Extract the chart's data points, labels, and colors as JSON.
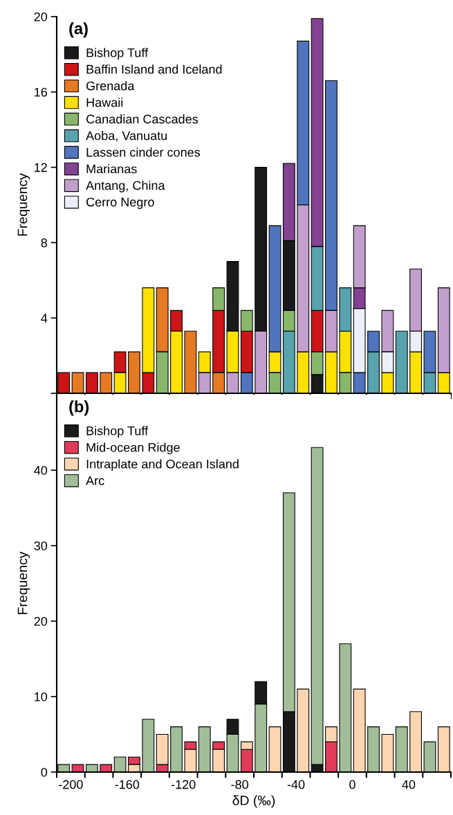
{
  "chart_data": [
    {
      "type": "bar",
      "annotations": [
        "(a)"
      ],
      "ylabel": "Frequency",
      "x": [
        -205,
        -195,
        -185,
        -175,
        -165,
        -155,
        -145,
        -135,
        -125,
        -115,
        -105,
        -95,
        -85,
        -75,
        -65,
        -55,
        -45,
        -35,
        -25,
        -15,
        -5,
        5,
        15,
        25,
        35,
        45,
        55,
        65
      ],
      "xlim": [
        -210,
        70
      ],
      "ylim": [
        0,
        20
      ],
      "xticks": [
        {
          "value": -210,
          "label": null
        },
        {
          "value": -190,
          "label": null
        },
        {
          "value": -170,
          "label": null
        },
        {
          "value": -150,
          "label": null
        },
        {
          "value": -130,
          "label": null
        },
        {
          "value": -110,
          "label": null
        },
        {
          "value": -90,
          "label": null
        },
        {
          "value": -70,
          "label": null
        },
        {
          "value": -50,
          "label": null
        },
        {
          "value": -30,
          "label": null
        },
        {
          "value": -10,
          "label": null
        },
        {
          "value": 10,
          "label": null
        },
        {
          "value": 30,
          "label": null
        },
        {
          "value": 50,
          "label": null
        },
        {
          "value": 70,
          "label": null
        }
      ],
      "yticks": [
        {
          "value": 0,
          "label": null
        },
        4,
        8,
        12,
        16,
        20
      ],
      "tick_labels": "y",
      "legend": "top left",
      "series": [
        {
          "name": "Bishop Tuff",
          "color": "#1a1a1a",
          "values": [
            null,
            null,
            null,
            null,
            null,
            null,
            null,
            null,
            null,
            null,
            null,
            null,
            3.7,
            null,
            8.7,
            null,
            3.7,
            null,
            1.0,
            null,
            null,
            null,
            null,
            null,
            null,
            null,
            null,
            null
          ],
          "base": [
            null,
            null,
            null,
            null,
            null,
            null,
            null,
            null,
            null,
            null,
            null,
            null,
            3.3,
            null,
            3.3,
            null,
            4.4,
            null,
            0,
            null,
            null,
            null,
            null,
            null,
            null,
            null,
            null,
            null
          ]
        },
        {
          "name": "Baffin Island and Iceland",
          "color": "#cc1517",
          "values": [
            1.1,
            null,
            1.1,
            null,
            1.1,
            null,
            1.1,
            null,
            1.1,
            null,
            null,
            3.3,
            null,
            2.2,
            null,
            null,
            null,
            null,
            2.2,
            null,
            null,
            null,
            null,
            null,
            null,
            null,
            null,
            null
          ],
          "base": [
            0,
            null,
            0,
            null,
            1.1,
            null,
            0,
            null,
            3.3,
            null,
            null,
            1.1,
            null,
            1.1,
            null,
            null,
            null,
            null,
            2.2,
            null,
            null,
            null,
            null,
            null,
            null,
            null,
            null,
            null
          ]
        },
        {
          "name": "Grenada",
          "color": "#e57a24",
          "values": [
            null,
            1.1,
            null,
            1.1,
            null,
            2.2,
            null,
            3.4,
            null,
            3.3,
            null,
            1.1,
            null,
            null,
            null,
            null,
            null,
            null,
            null,
            null,
            null,
            null,
            null,
            null,
            null,
            null,
            null,
            null
          ],
          "base": [
            null,
            0,
            null,
            0,
            null,
            0,
            null,
            2.2,
            null,
            0,
            null,
            0,
            null,
            null,
            null,
            null,
            null,
            null,
            null,
            null,
            null,
            null,
            null,
            null,
            null,
            null,
            null,
            null
          ]
        },
        {
          "name": "Hawaii",
          "color": "#ffe100",
          "values": [
            null,
            null,
            null,
            null,
            1.1,
            null,
            4.5,
            null,
            3.3,
            null,
            1.1,
            null,
            2.2,
            null,
            null,
            1.1,
            null,
            2.2,
            null,
            2.2,
            2.2,
            null,
            null,
            1.1,
            null,
            2.2,
            null,
            1.1
          ],
          "base": [
            null,
            null,
            null,
            null,
            0,
            null,
            1.1,
            null,
            0,
            null,
            1.1,
            null,
            1.1,
            null,
            null,
            1.1,
            null,
            0,
            null,
            0,
            1.1,
            null,
            null,
            0,
            null,
            0,
            null,
            0
          ]
        },
        {
          "name": "Canadian Cascades",
          "color": "#88b76b",
          "values": [
            null,
            null,
            null,
            null,
            null,
            null,
            null,
            2.2,
            null,
            null,
            null,
            1.2,
            null,
            1.1,
            null,
            1.1,
            1.1,
            null,
            1.2,
            null,
            1.1,
            null,
            null,
            null,
            null,
            null,
            null,
            null
          ],
          "base": [
            null,
            null,
            null,
            null,
            null,
            null,
            null,
            0,
            null,
            null,
            null,
            4.4,
            null,
            3.3,
            null,
            0,
            3.3,
            null,
            1.0,
            null,
            0,
            null,
            null,
            null,
            null,
            null,
            null,
            null
          ]
        },
        {
          "name": "Aoba, Vanuatu",
          "color": "#57a3ae",
          "values": [
            null,
            null,
            null,
            null,
            null,
            null,
            null,
            null,
            null,
            null,
            null,
            null,
            null,
            null,
            null,
            null,
            3.3,
            null,
            3.4,
            null,
            2.3,
            null,
            2.2,
            null,
            3.3,
            null,
            1.1,
            null
          ],
          "base": [
            null,
            null,
            null,
            null,
            null,
            null,
            null,
            null,
            null,
            null,
            null,
            null,
            null,
            null,
            null,
            null,
            0,
            null,
            4.4,
            null,
            3.3,
            null,
            0,
            null,
            0,
            null,
            0,
            null
          ]
        },
        {
          "name": "Lassen cinder cones",
          "color": "#5074bd",
          "values": [
            null,
            null,
            null,
            null,
            null,
            null,
            null,
            null,
            null,
            null,
            null,
            null,
            null,
            1.1,
            null,
            6.7,
            null,
            8.7,
            null,
            12.2,
            null,
            1.1,
            1.1,
            null,
            null,
            null,
            2.2,
            null
          ],
          "base": [
            null,
            null,
            null,
            null,
            null,
            null,
            null,
            null,
            null,
            null,
            null,
            null,
            null,
            0,
            null,
            2.2,
            null,
            10.0,
            null,
            4.4,
            null,
            0,
            2.2,
            null,
            null,
            null,
            1.1,
            null
          ]
        },
        {
          "name": "Marianas",
          "color": "#844292",
          "values": [
            null,
            null,
            null,
            null,
            null,
            null,
            null,
            null,
            null,
            null,
            null,
            null,
            null,
            null,
            null,
            null,
            4.1,
            null,
            12.1,
            null,
            null,
            1.1,
            null,
            null,
            null,
            null,
            null,
            null
          ],
          "base": [
            null,
            null,
            null,
            null,
            null,
            null,
            null,
            null,
            null,
            null,
            null,
            null,
            null,
            null,
            null,
            null,
            8.1,
            null,
            7.8,
            null,
            null,
            4.5,
            null,
            null,
            null,
            null,
            null,
            null
          ]
        },
        {
          "name": "Antang, China",
          "color": "#c39fcd",
          "values": [
            null,
            null,
            null,
            null,
            null,
            null,
            null,
            null,
            null,
            null,
            1.1,
            null,
            1.1,
            null,
            3.3,
            null,
            null,
            7.8,
            null,
            2.2,
            null,
            3.3,
            null,
            2.2,
            null,
            3.3,
            null,
            4.5
          ],
          "base": [
            null,
            null,
            null,
            null,
            null,
            null,
            null,
            null,
            null,
            null,
            0,
            null,
            0,
            null,
            0,
            null,
            null,
            2.2,
            null,
            2.2,
            null,
            5.6,
            null,
            2.2,
            null,
            3.3,
            null,
            1.1
          ]
        },
        {
          "name": "Cerro Negro",
          "color": "#eceef8",
          "values": [
            null,
            null,
            null,
            null,
            null,
            null,
            null,
            null,
            null,
            null,
            null,
            null,
            null,
            null,
            null,
            null,
            null,
            null,
            null,
            null,
            null,
            3.4,
            null,
            1.1,
            null,
            1.1,
            null,
            null
          ],
          "base": [
            null,
            null,
            null,
            null,
            null,
            null,
            null,
            null,
            null,
            null,
            null,
            null,
            null,
            null,
            null,
            null,
            null,
            null,
            null,
            null,
            null,
            1.1,
            null,
            1.1,
            null,
            2.2,
            null,
            null
          ]
        }
      ]
    },
    {
      "type": "bar",
      "annotations": [
        "(b)"
      ],
      "ylabel": "Frequency",
      "xlabel": "δD (‰)",
      "x": [
        -205,
        -195,
        -185,
        -175,
        -165,
        -155,
        -145,
        -135,
        -125,
        -115,
        -105,
        -95,
        -85,
        -75,
        -65,
        -55,
        -45,
        -35,
        -25,
        -15,
        -5,
        5,
        15,
        25,
        35,
        45,
        55,
        65
      ],
      "xlim": [
        -210,
        70
      ],
      "ylim": [
        0,
        50
      ],
      "xticks": [
        {
          "value": -210,
          "label": null
        },
        {
          "value": -200,
          "label": "-200"
        },
        {
          "value": -190,
          "label": null
        },
        {
          "value": -170,
          "label": null
        },
        {
          "value": -160,
          "label": "-160"
        },
        {
          "value": -150,
          "label": null
        },
        {
          "value": -130,
          "label": null
        },
        {
          "value": -120,
          "label": "-120"
        },
        {
          "value": -110,
          "label": null
        },
        {
          "value": -90,
          "label": null
        },
        {
          "value": -80,
          "label": "-80"
        },
        {
          "value": -70,
          "label": null
        },
        {
          "value": -50,
          "label": null
        },
        {
          "value": -40,
          "label": "-40"
        },
        {
          "value": -30,
          "label": null
        },
        {
          "value": -10,
          "label": null
        },
        {
          "value": 0,
          "label": "0"
        },
        {
          "value": 10,
          "label": null
        },
        {
          "value": 30,
          "label": null
        },
        {
          "value": 40,
          "label": "40"
        },
        {
          "value": 50,
          "label": null
        },
        {
          "value": 70,
          "label": null
        }
      ],
      "yticks": [
        0,
        10,
        20,
        30,
        40
      ],
      "legend": "top left",
      "series": [
        {
          "name": "Bishop Tuff",
          "color": "#1a1a1a",
          "values": [
            null,
            null,
            null,
            null,
            null,
            null,
            null,
            null,
            null,
            null,
            null,
            null,
            2,
            null,
            3,
            null,
            8,
            null,
            1,
            null,
            null,
            null,
            null,
            null,
            null,
            null,
            null,
            null
          ],
          "base": [
            null,
            null,
            null,
            null,
            null,
            null,
            null,
            null,
            null,
            null,
            null,
            null,
            5,
            null,
            9,
            null,
            0,
            null,
            0,
            null,
            null,
            null,
            null,
            null,
            null,
            null,
            null,
            null
          ]
        },
        {
          "name": "Mid-ocean Ridge",
          "color": "#e03c59",
          "values": [
            null,
            1,
            null,
            1,
            null,
            1,
            null,
            1,
            null,
            1,
            null,
            1,
            null,
            3,
            null,
            null,
            null,
            null,
            null,
            4,
            null,
            null,
            null,
            null,
            null,
            null,
            null,
            null
          ],
          "base": [
            null,
            0,
            null,
            0,
            null,
            1,
            null,
            0,
            null,
            3,
            null,
            3,
            null,
            0,
            null,
            null,
            null,
            null,
            null,
            0,
            null,
            null,
            null,
            null,
            null,
            null,
            null,
            null
          ]
        },
        {
          "name": "Intraplate and Ocean Island",
          "color": "#fdd5b1",
          "values": [
            null,
            null,
            null,
            null,
            null,
            1,
            null,
            4,
            null,
            3,
            null,
            3,
            null,
            1,
            null,
            6,
            null,
            11,
            null,
            2,
            null,
            11,
            null,
            5,
            null,
            8,
            null,
            6
          ],
          "base": [
            null,
            null,
            null,
            null,
            null,
            0,
            null,
            1,
            null,
            0,
            null,
            0,
            null,
            3,
            null,
            0,
            null,
            0,
            null,
            4,
            null,
            0,
            null,
            0,
            null,
            0,
            null,
            0
          ]
        },
        {
          "name": "Arc",
          "color": "#a2be99",
          "values": [
            1,
            null,
            1,
            null,
            2,
            null,
            7,
            null,
            6,
            null,
            6,
            null,
            5,
            null,
            9,
            null,
            29,
            null,
            42,
            null,
            17,
            null,
            6,
            null,
            6,
            null,
            4,
            null
          ],
          "base": [
            0,
            null,
            0,
            null,
            0,
            null,
            0,
            null,
            0,
            null,
            0,
            null,
            0,
            null,
            0,
            null,
            8,
            null,
            1,
            null,
            0,
            null,
            0,
            null,
            0,
            null,
            0,
            null
          ]
        }
      ]
    }
  ]
}
